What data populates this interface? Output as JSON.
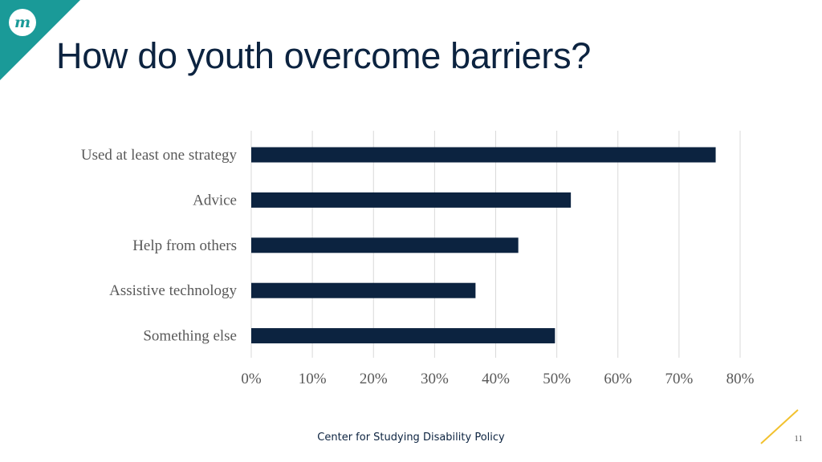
{
  "slide": {
    "title": "How do youth overcome barriers?",
    "footer": "Center for Studying Disability Policy",
    "page_number": "11",
    "logo_text": "m"
  },
  "colors": {
    "title": "#0c2340",
    "bar": "#0c2340",
    "corner_teal": "#1a9a98",
    "accent_line": "#f2c12e"
  },
  "chart_data": {
    "type": "bar",
    "orientation": "horizontal",
    "categories": [
      "Used at least one strategy",
      "Advice",
      "Help from others",
      "Assistive technology",
      "Something else"
    ],
    "values": [
      76,
      52.3,
      43.7,
      36.7,
      49.7
    ],
    "x_ticks": [
      "0%",
      "10%",
      "20%",
      "30%",
      "40%",
      "50%",
      "60%",
      "70%",
      "80%"
    ],
    "xlim": [
      0,
      80
    ],
    "grid": true,
    "color": "#0c2340"
  }
}
